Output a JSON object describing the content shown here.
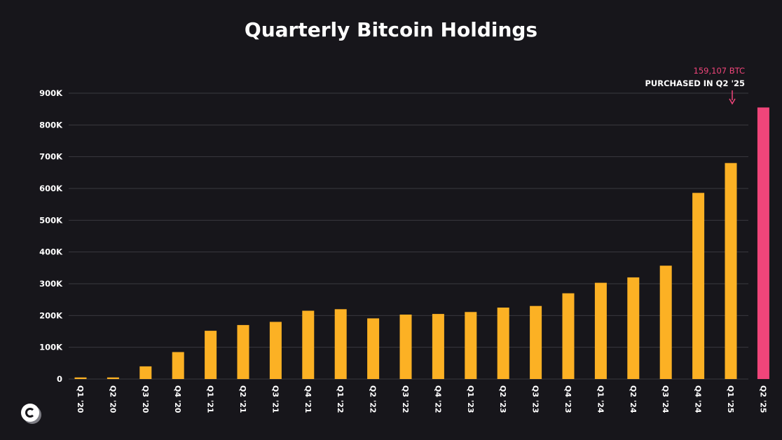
{
  "chart_data": {
    "type": "bar",
    "title": "Quarterly Bitcoin Holdings",
    "xlabel": "",
    "ylabel": "",
    "ylim": [
      0,
      900000
    ],
    "yticks": [
      0,
      100000,
      200000,
      300000,
      400000,
      500000,
      600000,
      700000,
      800000,
      900000
    ],
    "ytick_labels": [
      "0",
      "100K",
      "200K",
      "300K",
      "400K",
      "500K",
      "600K",
      "700K",
      "800K",
      "900K"
    ],
    "categories": [
      "Q1 '20",
      "Q2 '20",
      "Q3 '20",
      "Q4 '20",
      "Q1 '21",
      "Q2 '21",
      "Q3 '21",
      "Q4 '21",
      "Q1 '22",
      "Q2 '22",
      "Q3 '22",
      "Q4 '22",
      "Q1 '23",
      "Q2 '23",
      "Q3 '23",
      "Q4 '23",
      "Q1 '24",
      "Q2 '24",
      "Q3 '24",
      "Q4 '24",
      "Q1 '25",
      "Q2 '25"
    ],
    "values": [
      5000,
      5000,
      40000,
      85000,
      152000,
      170000,
      180000,
      215000,
      220000,
      191000,
      203000,
      205000,
      211000,
      225000,
      230000,
      270000,
      303000,
      320000,
      357000,
      586000,
      680000,
      855000
    ],
    "grid": true,
    "colors": {
      "bar": "#fcb124",
      "highlight": "#f0457a",
      "background": "#17161b",
      "grid": "#3a393f",
      "text": "#ffffff"
    },
    "highlight_index": 21,
    "annotation": {
      "value": "159,107 BTC",
      "text": "PURCHASED IN Q2 '25"
    }
  },
  "logo": {
    "icon": "c-circle-logo-icon"
  }
}
